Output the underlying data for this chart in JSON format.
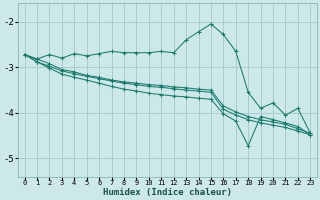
{
  "background_color": "#cce8e8",
  "grid_color": "#aacccc",
  "line_color": "#1a7a6e",
  "xlabel": "Humidex (Indice chaleur)",
  "xlim": [
    -0.5,
    23.5
  ],
  "ylim": [
    -5.4,
    -1.6
  ],
  "yticks": [
    -5,
    -4,
    -3,
    -2
  ],
  "xticks": [
    0,
    1,
    2,
    3,
    4,
    5,
    6,
    7,
    8,
    9,
    10,
    11,
    12,
    13,
    14,
    15,
    16,
    17,
    18,
    19,
    20,
    21,
    22,
    23
  ],
  "series": [
    {
      "x": [
        0,
        1,
        2,
        3,
        4,
        5,
        6,
        7,
        8,
        9,
        10,
        11,
        12,
        13,
        14,
        15,
        16,
        17,
        18,
        19,
        20,
        21,
        22,
        23
      ],
      "y": [
        -2.72,
        -2.82,
        -2.72,
        -2.8,
        -2.7,
        -2.75,
        -2.7,
        -2.65,
        -2.68,
        -2.68,
        -2.68,
        -2.65,
        -2.68,
        -2.4,
        -2.22,
        -2.05,
        -2.28,
        -2.65,
        -3.55,
        -3.9,
        -3.78,
        -4.05,
        -3.9,
        -4.45
      ]
    },
    {
      "x": [
        0,
        1,
        2,
        3,
        4,
        5,
        6,
        7,
        8,
        9,
        10,
        11,
        12,
        13,
        14,
        15,
        16,
        17,
        18,
        19,
        20,
        21,
        22,
        23
      ],
      "y": [
        -2.72,
        -2.82,
        -2.92,
        -3.05,
        -3.1,
        -3.18,
        -3.22,
        -3.28,
        -3.32,
        -3.35,
        -3.38,
        -3.4,
        -3.43,
        -3.45,
        -3.48,
        -3.5,
        -3.85,
        -3.98,
        -4.08,
        -4.15,
        -4.2,
        -4.25,
        -4.35,
        -4.45
      ]
    },
    {
      "x": [
        0,
        1,
        2,
        3,
        4,
        5,
        6,
        7,
        8,
        9,
        10,
        11,
        12,
        13,
        14,
        15,
        16,
        17,
        18,
        19,
        20,
        21,
        22,
        23
      ],
      "y": [
        -2.72,
        -2.88,
        -2.98,
        -3.08,
        -3.14,
        -3.2,
        -3.25,
        -3.3,
        -3.35,
        -3.38,
        -3.42,
        -3.44,
        -3.47,
        -3.5,
        -3.52,
        -3.55,
        -3.92,
        -4.05,
        -4.15,
        -4.22,
        -4.27,
        -4.32,
        -4.4,
        -4.48
      ]
    },
    {
      "x": [
        0,
        1,
        2,
        3,
        4,
        5,
        6,
        7,
        8,
        9,
        10,
        11,
        12,
        13,
        14,
        15,
        16,
        17,
        18,
        19,
        20,
        21,
        22,
        23
      ],
      "y": [
        -2.72,
        -2.88,
        -3.02,
        -3.15,
        -3.22,
        -3.28,
        -3.35,
        -3.42,
        -3.48,
        -3.52,
        -3.57,
        -3.6,
        -3.63,
        -3.65,
        -3.68,
        -3.7,
        -4.02,
        -4.18,
        -4.72,
        -4.08,
        -4.15,
        -4.22,
        -4.3,
        -4.48
      ]
    }
  ],
  "figsize": [
    3.2,
    2.0
  ],
  "dpi": 100
}
